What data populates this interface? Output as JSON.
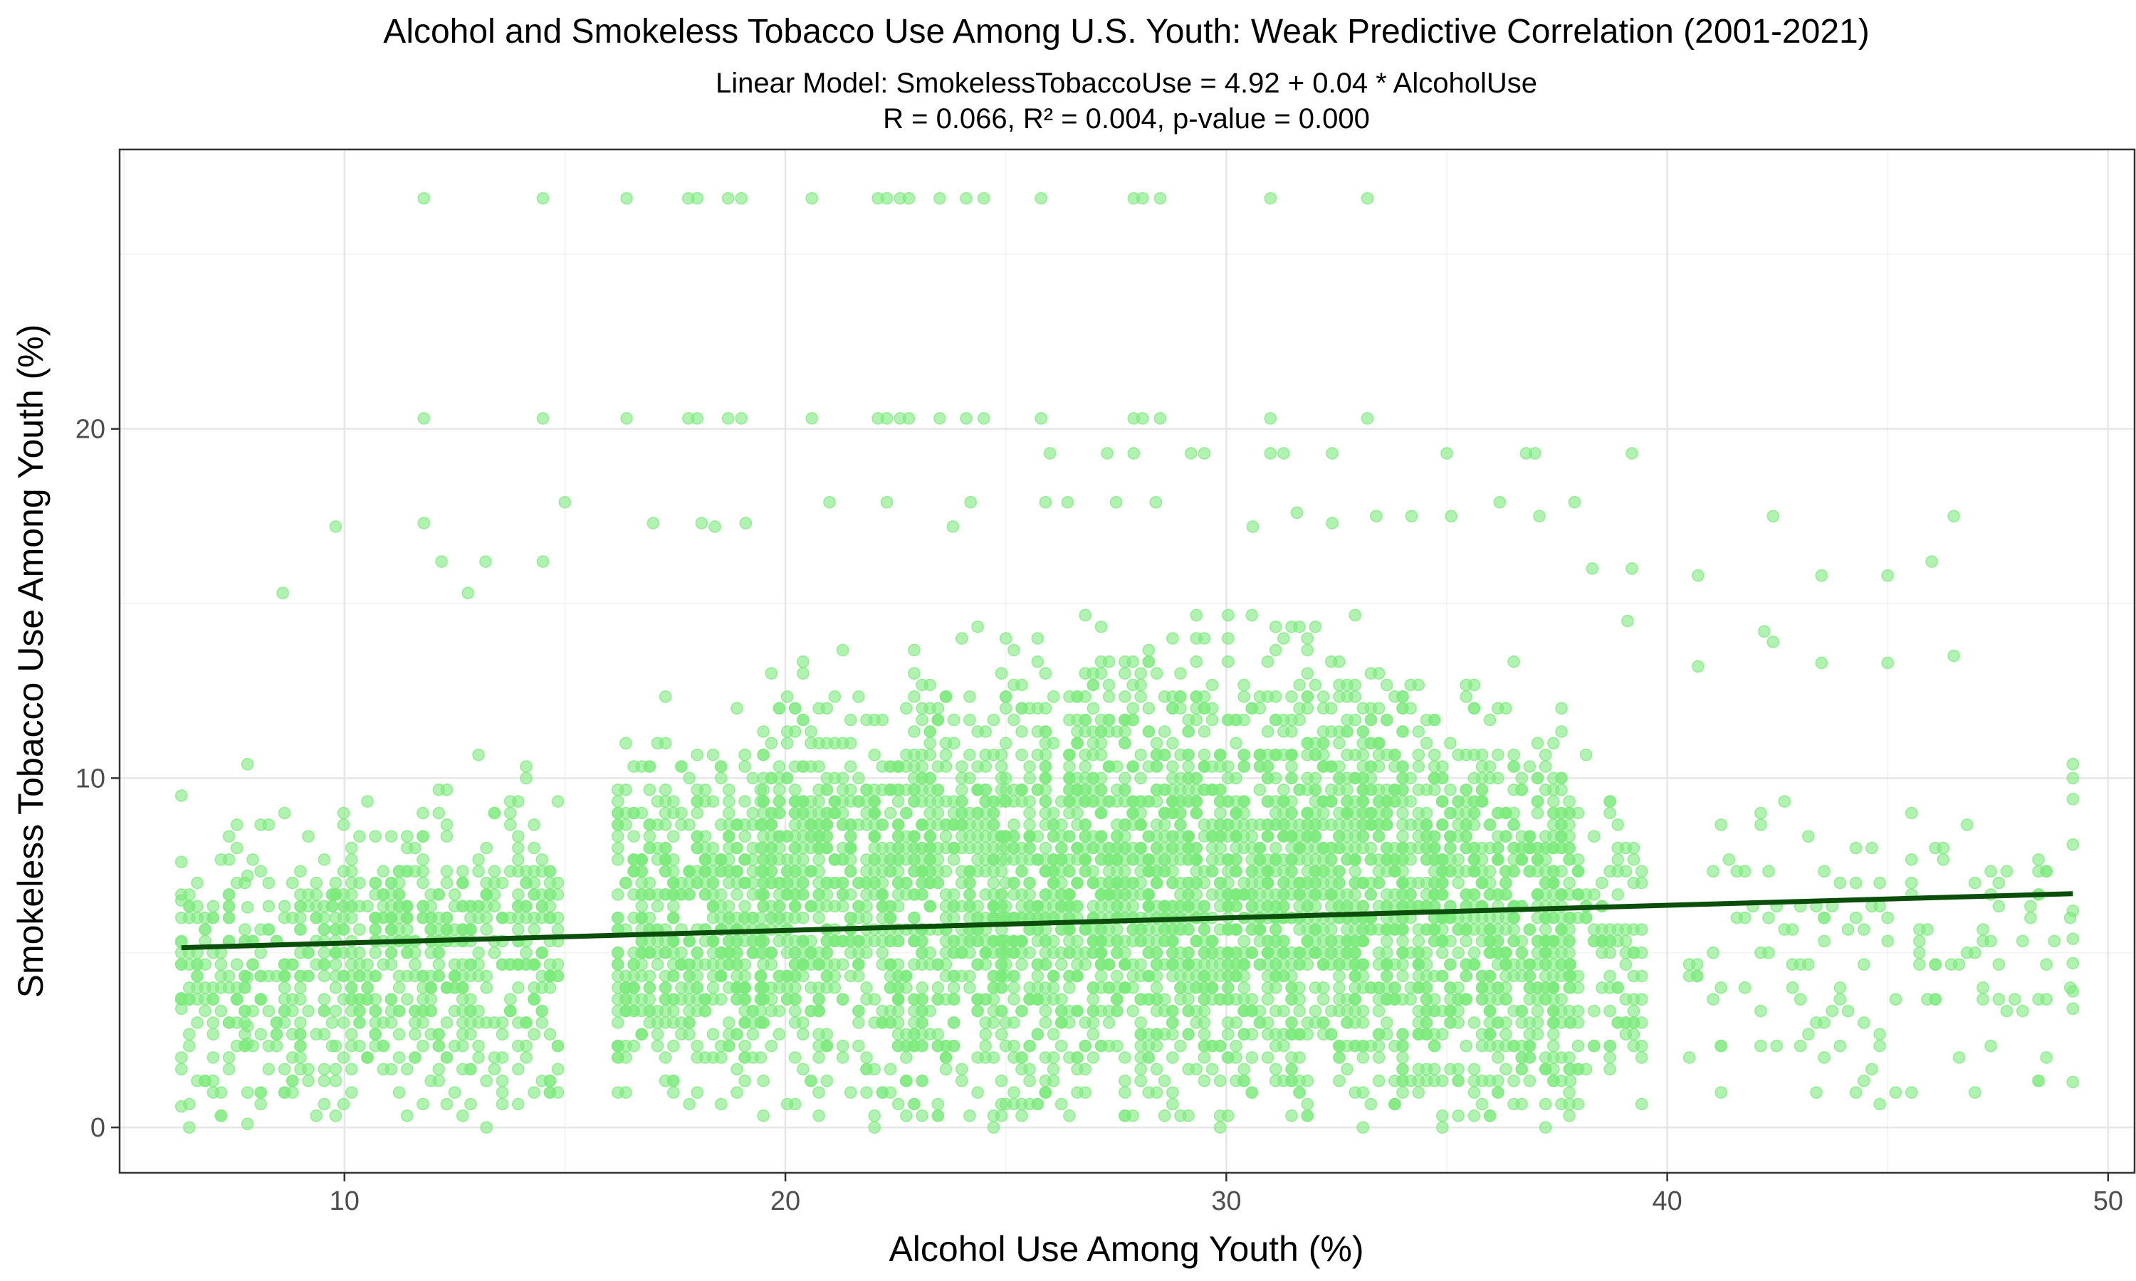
{
  "chart_data": {
    "type": "scatter",
    "title": "Alcohol and Smokeless Tobacco Use Among U.S. Youth: Weak Predictive Correlation (2001-2021)",
    "subtitle_line1": "Linear Model: SmokelessTobaccoUse = 4.92 + 0.04 * AlcoholUse",
    "subtitle_line2": "R = 0.066, R² = 0.004, p-value = 0.000",
    "xlabel": "Alcohol Use Among Youth (%)",
    "ylabel": "Smokeless Tobacco Use Among Youth (%)",
    "xlim": [
      4.9,
      50.6
    ],
    "ylim": [
      -1.3,
      28.0
    ],
    "x_ticks": [
      10,
      20,
      30,
      40,
      50
    ],
    "y_ticks": [
      0,
      10,
      20
    ],
    "x_tick_labels": [
      "10",
      "20",
      "30",
      "40",
      "50"
    ],
    "y_tick_labels": [
      "0",
      "10",
      "20"
    ],
    "grid": true,
    "point_color": "#7CEB7C",
    "point_opacity": 0.6,
    "fit_line": {
      "intercept": 4.92,
      "slope": 0.036,
      "x_start": 6.3,
      "x_end": 49.2,
      "color": "#0B4D0B"
    },
    "approx_n_points": 5000,
    "outlier_rows": [
      {
        "y": 26.6,
        "x": [
          11.8,
          14.5,
          16.4,
          17.8,
          18.0,
          18.7,
          19.0,
          20.6,
          22.1,
          22.3,
          22.6,
          22.8,
          23.5,
          24.1,
          24.5,
          25.8,
          27.9,
          28.1,
          28.5,
          31.0,
          33.2
        ]
      },
      {
        "y": 20.3,
        "x": [
          11.8,
          14.5,
          16.4,
          17.8,
          18.0,
          18.7,
          19.0,
          20.6,
          22.1,
          22.3,
          22.6,
          22.8,
          23.5,
          24.1,
          24.5,
          25.8,
          27.9,
          28.1,
          28.5,
          31.0,
          33.2
        ]
      },
      {
        "y": 19.3,
        "x": [
          26.0,
          27.3,
          27.9,
          29.2,
          29.5,
          31.0,
          31.3,
          32.4,
          35.0,
          36.8,
          37.0,
          39.2
        ]
      }
    ],
    "bands": [
      {
        "x_min": 6.3,
        "x_max": 9.8,
        "y_min": 0.0,
        "y_max": 10.0,
        "count": 230
      },
      {
        "x_min": 9.8,
        "x_max": 15.0,
        "y_min": 0.0,
        "y_max": 11.5,
        "count": 480
      },
      {
        "x_min": 16.2,
        "x_max": 19.5,
        "y_min": 0.5,
        "y_max": 13.5,
        "count": 480
      },
      {
        "x_min": 19.5,
        "x_max": 25.0,
        "y_min": 0.0,
        "y_max": 15.5,
        "count": 950
      },
      {
        "x_min": 25.0,
        "x_max": 34.0,
        "y_min": 0.0,
        "y_max": 16.5,
        "count": 1900
      },
      {
        "x_min": 34.0,
        "x_max": 37.8,
        "y_min": 0.0,
        "y_max": 14.5,
        "count": 700
      },
      {
        "x_min": 37.8,
        "x_max": 39.5,
        "y_min": 0.5,
        "y_max": 12.0,
        "count": 110
      },
      {
        "x_min": 40.5,
        "x_max": 49.2,
        "y_min": 0.5,
        "y_max": 11.5,
        "count": 140
      }
    ],
    "sparse_points": [
      [
        8.6,
        15.3
      ],
      [
        9.8,
        17.2
      ],
      [
        11.8,
        17.3
      ],
      [
        12.2,
        16.2
      ],
      [
        12.8,
        15.3
      ],
      [
        13.2,
        16.2
      ],
      [
        14.5,
        16.2
      ],
      [
        15.0,
        17.9
      ],
      [
        17.0,
        17.3
      ],
      [
        18.1,
        17.3
      ],
      [
        18.4,
        17.2
      ],
      [
        19.1,
        17.3
      ],
      [
        21.0,
        17.9
      ],
      [
        22.3,
        17.9
      ],
      [
        23.8,
        17.2
      ],
      [
        24.2,
        17.9
      ],
      [
        25.9,
        17.9
      ],
      [
        26.4,
        17.9
      ],
      [
        27.5,
        17.9
      ],
      [
        28.4,
        17.9
      ],
      [
        30.6,
        17.2
      ],
      [
        31.6,
        17.6
      ],
      [
        32.4,
        17.3
      ],
      [
        33.4,
        17.5
      ],
      [
        34.2,
        17.5
      ],
      [
        35.1,
        17.5
      ],
      [
        36.2,
        17.9
      ],
      [
        37.1,
        17.5
      ],
      [
        37.9,
        17.9
      ],
      [
        38.3,
        16.0
      ],
      [
        39.2,
        16.0
      ],
      [
        39.1,
        14.5
      ],
      [
        40.7,
        15.8
      ],
      [
        42.2,
        14.2
      ],
      [
        42.4,
        17.5
      ],
      [
        43.5,
        15.8
      ],
      [
        45.0,
        15.8
      ],
      [
        46.0,
        16.2
      ],
      [
        46.5,
        17.5
      ],
      [
        46.5,
        13.5
      ],
      [
        45.0,
        13.3
      ],
      [
        43.5,
        13.3
      ],
      [
        42.4,
        13.9
      ],
      [
        40.7,
        13.2
      ],
      [
        49.2,
        10.4
      ],
      [
        49.2,
        10.0
      ],
      [
        49.2,
        9.4
      ],
      [
        49.2,
        8.1
      ],
      [
        49.2,
        6.2
      ],
      [
        49.2,
        5.4
      ],
      [
        49.2,
        4.7
      ],
      [
        49.2,
        3.9
      ],
      [
        49.2,
        3.4
      ],
      [
        49.2,
        1.3
      ],
      [
        6.3,
        9.5
      ],
      [
        6.3,
        7.6
      ],
      [
        6.3,
        6.5
      ],
      [
        6.3,
        5.3
      ],
      [
        6.3,
        3.7
      ],
      [
        6.3,
        3.4
      ],
      [
        6.3,
        2.0
      ],
      [
        6.3,
        0.6
      ],
      [
        7.8,
        10.4
      ],
      [
        7.8,
        7.2
      ],
      [
        7.8,
        6.3
      ],
      [
        7.8,
        4.3
      ],
      [
        7.8,
        2.9
      ],
      [
        7.8,
        2.4
      ],
      [
        7.8,
        1.0
      ],
      [
        7.8,
        0.1
      ]
    ]
  }
}
